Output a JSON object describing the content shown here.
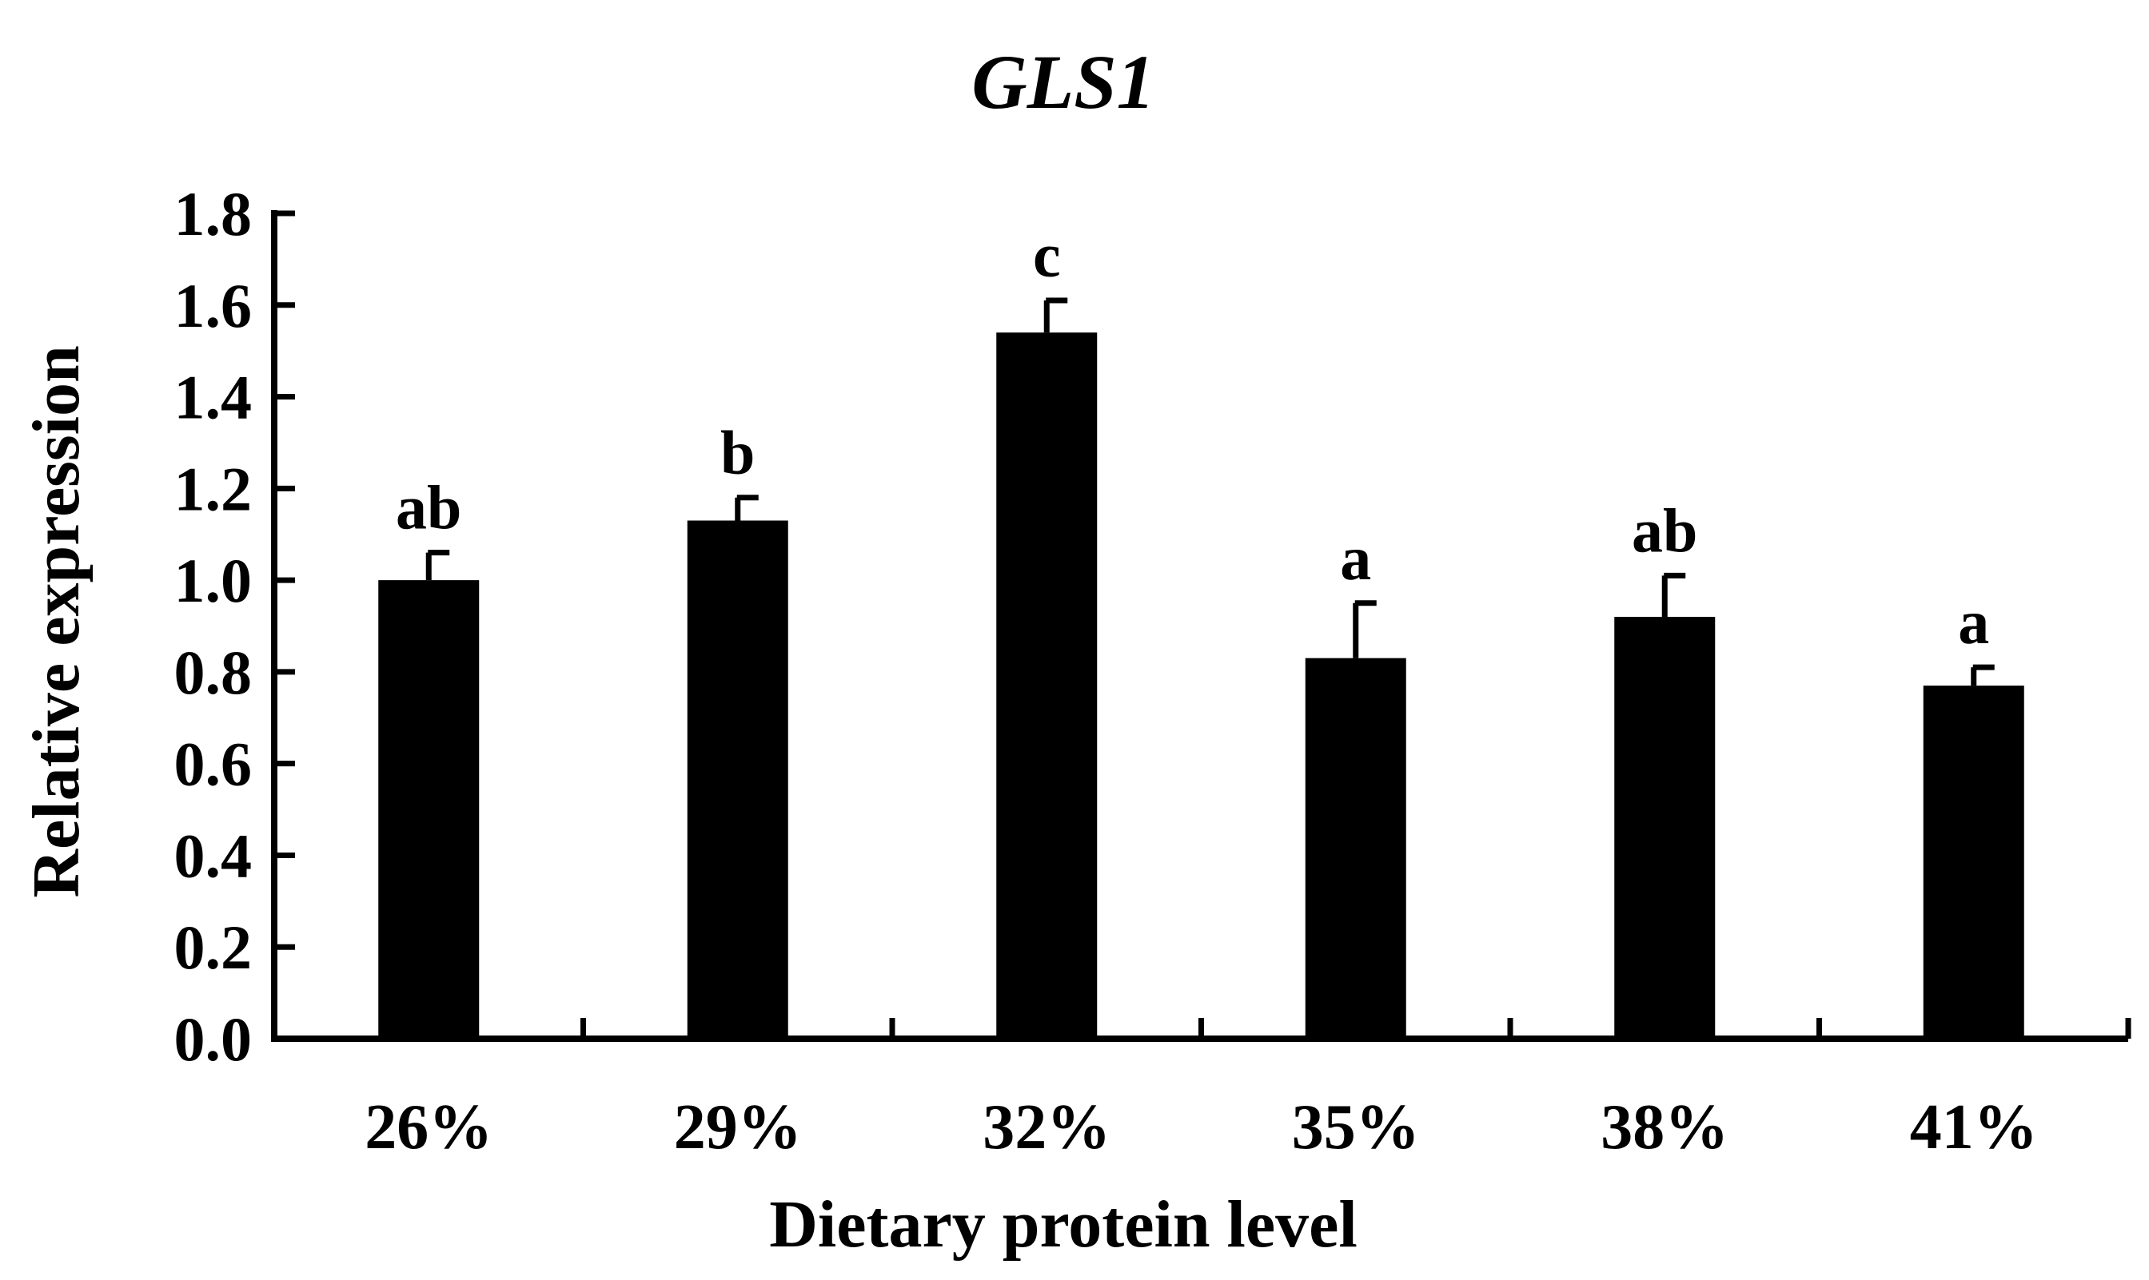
{
  "chart_data": {
    "type": "bar",
    "title": "GLS1",
    "xlabel": "Dietary protein level",
    "ylabel": "Relative expression",
    "categories": [
      "26%",
      "29%",
      "32%",
      "35%",
      "38%",
      "41%"
    ],
    "values": [
      1.0,
      1.13,
      1.54,
      0.83,
      0.92,
      0.77
    ],
    "errors": [
      0.06,
      0.05,
      0.07,
      0.12,
      0.09,
      0.04
    ],
    "significance_letters": [
      "ab",
      "b",
      "c",
      "a",
      "ab",
      "a"
    ],
    "ylim": [
      0,
      1.8
    ],
    "yticks": [
      "0.0",
      "0.2",
      "0.4",
      "0.6",
      "0.8",
      "1.0",
      "1.2",
      "1.4",
      "1.6",
      "1.8"
    ],
    "grid": false,
    "bar_color": "#000000"
  }
}
